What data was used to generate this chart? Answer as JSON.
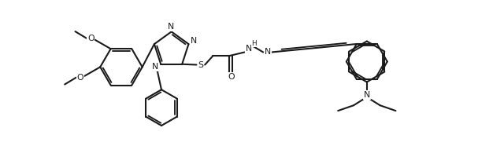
{
  "bg": "#ffffff",
  "lc": "#1a1a1a",
  "lw": 1.5,
  "fs": 7.8,
  "figsize": [
    6.4,
    1.86
  ],
  "dpi": 100,
  "xlim": [
    0.0,
    12.8
  ],
  "ylim": [
    -2.5,
    2.3
  ]
}
